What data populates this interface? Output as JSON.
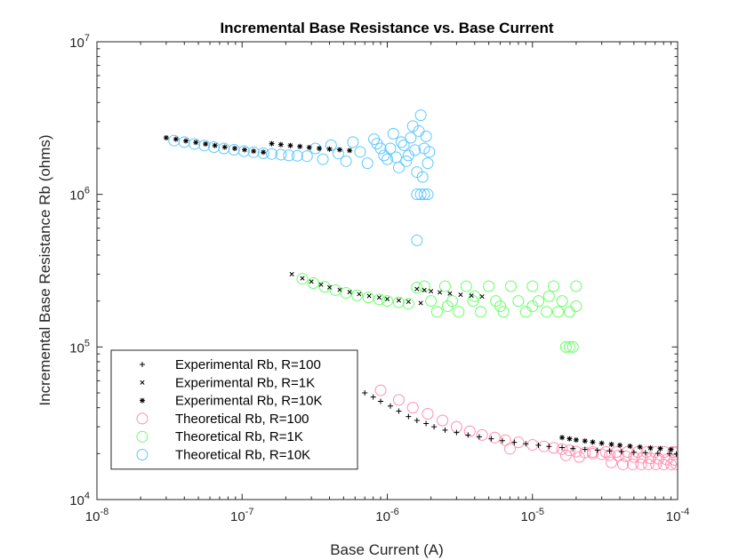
{
  "chart_data": {
    "type": "scatter",
    "title": "Incremental Base Resistance vs. Base Current",
    "xlabel": "Base Current (A)",
    "ylabel": "Incremental Base Resistance Rb (ohms)",
    "xscale": "log",
    "yscale": "log",
    "xlim": [
      1e-08,
      0.0001
    ],
    "ylim": [
      10000.0,
      10000000.0
    ],
    "x_ticks": [
      {
        "value": 1e-08,
        "base": "10",
        "exp": "-8"
      },
      {
        "value": 1e-07,
        "base": "10",
        "exp": "-7"
      },
      {
        "value": 1e-06,
        "base": "10",
        "exp": "-6"
      },
      {
        "value": 1e-05,
        "base": "10",
        "exp": "-5"
      },
      {
        "value": 0.0001,
        "base": "10",
        "exp": "-4"
      }
    ],
    "y_ticks": [
      {
        "value": 10000.0,
        "base": "10",
        "exp": "4"
      },
      {
        "value": 100000.0,
        "base": "10",
        "exp": "5"
      },
      {
        "value": 1000000.0,
        "base": "10",
        "exp": "6"
      },
      {
        "value": 10000000.0,
        "base": "10",
        "exp": "7"
      }
    ],
    "grid": false,
    "legend_position": "bottom-left",
    "series": [
      {
        "name": "Experimental Rb, R=100",
        "marker": "plus",
        "color": "#000000",
        "points": [
          [
            7e-07,
            50000
          ],
          [
            8e-07,
            47000
          ],
          [
            9e-07,
            44000
          ],
          [
            1.05e-06,
            41000
          ],
          [
            1.2e-06,
            38000
          ],
          [
            1.4e-06,
            35000
          ],
          [
            1.6e-06,
            33000
          ],
          [
            1.85e-06,
            31500
          ],
          [
            2.1e-06,
            30000
          ],
          [
            2.5e-06,
            28500
          ],
          [
            3e-06,
            27500
          ],
          [
            3.6e-06,
            26500
          ],
          [
            4.3e-06,
            25800
          ],
          [
            5.2e-06,
            25000
          ],
          [
            6.2e-06,
            24300
          ],
          [
            7.5e-06,
            23700
          ],
          [
            9e-06,
            23200
          ],
          [
            1.1e-05,
            22700
          ],
          [
            1.3e-05,
            22300
          ],
          [
            1.6e-05,
            21900
          ],
          [
            1.9e-05,
            21600
          ],
          [
            2.3e-05,
            21300
          ],
          [
            2.8e-05,
            21000
          ],
          [
            3.4e-05,
            20800
          ],
          [
            4.1e-05,
            20600
          ],
          [
            5e-05,
            20400
          ],
          [
            6e-05,
            20300
          ],
          [
            7.3e-05,
            20100
          ],
          [
            8.8e-05,
            20000
          ],
          [
            9.8e-05,
            19900
          ]
        ]
      },
      {
        "name": "Experimental Rb, R=1K",
        "marker": "x",
        "color": "#000000",
        "points": [
          [
            2.2e-07,
            300000
          ],
          [
            2.6e-07,
            282000
          ],
          [
            3e-07,
            268000
          ],
          [
            3.5e-07,
            256000
          ],
          [
            4e-07,
            246000
          ],
          [
            4.7e-07,
            237000
          ],
          [
            5.5e-07,
            229000
          ],
          [
            6.4e-07,
            222000
          ],
          [
            7.5e-07,
            216000
          ],
          [
            8.8e-07,
            211000
          ],
          [
            1e-06,
            206000
          ],
          [
            1.2e-06,
            202000
          ],
          [
            1.4e-06,
            198000
          ],
          [
            1.7e-06,
            194000
          ],
          [
            1.6e-06,
            240000
          ],
          [
            1.8e-06,
            236000
          ],
          [
            2e-06,
            232000
          ],
          [
            2.3e-06,
            228000
          ],
          [
            2.7e-06,
            224000
          ],
          [
            3.2e-06,
            220000
          ],
          [
            3.8e-06,
            217000
          ],
          [
            4.5e-06,
            214000
          ]
        ]
      },
      {
        "name": "Experimental Rb, R=10K",
        "marker": "star",
        "color": "#000000",
        "points": [
          [
            3e-08,
            2350000
          ],
          [
            3.5e-08,
            2300000
          ],
          [
            4.1e-08,
            2240000
          ],
          [
            4.8e-08,
            2190000
          ],
          [
            5.6e-08,
            2140000
          ],
          [
            6.5e-08,
            2090000
          ],
          [
            7.6e-08,
            2040000
          ],
          [
            8.9e-08,
            2000000
          ],
          [
            1.04e-07,
            1960000
          ],
          [
            1.2e-07,
            1920000
          ],
          [
            1.4e-07,
            1890000
          ],
          [
            1.6e-07,
            2150000
          ],
          [
            1.85e-07,
            2120000
          ],
          [
            2.15e-07,
            2090000
          ],
          [
            2.5e-07,
            2060000
          ],
          [
            2.9e-07,
            2030000
          ],
          [
            3.4e-07,
            2000000
          ],
          [
            4e-07,
            1980000
          ],
          [
            4.7e-07,
            1960000
          ],
          [
            5.5e-07,
            1940000
          ],
          [
            1.6e-05,
            25500
          ],
          [
            1.8e-05,
            25000
          ],
          [
            2e-05,
            24600
          ],
          [
            2.3e-05,
            24200
          ],
          [
            2.6e-05,
            23800
          ],
          [
            3e-05,
            23400
          ],
          [
            3.5e-05,
            23000
          ],
          [
            4e-05,
            22700
          ],
          [
            4.7e-05,
            22400
          ],
          [
            5.5e-05,
            22100
          ],
          [
            6.5e-05,
            21800
          ],
          [
            7.6e-05,
            21600
          ],
          [
            9e-05,
            21300
          ]
        ]
      },
      {
        "name": "Theoretical Rb, R=100",
        "marker": "circle",
        "color": "#ff8fb0",
        "points": [
          [
            9e-07,
            52000
          ],
          [
            1.2e-06,
            45000
          ],
          [
            1.5e-06,
            40000
          ],
          [
            1.9e-06,
            36500
          ],
          [
            2.4e-06,
            33000
          ],
          [
            3e-06,
            30000
          ],
          [
            3.7e-06,
            28000
          ],
          [
            4.5e-06,
            26500
          ],
          [
            5.5e-06,
            25500
          ],
          [
            6.5e-06,
            24500
          ],
          [
            8e-06,
            23700
          ],
          [
            1e-05,
            22800
          ],
          [
            1.2e-05,
            22300
          ],
          [
            1.4e-05,
            21800
          ],
          [
            1.6e-05,
            21400
          ],
          [
            1.8e-05,
            21000
          ],
          [
            2e-05,
            20600
          ],
          [
            2.3e-05,
            20300
          ],
          [
            2.6e-05,
            20000
          ],
          [
            3e-05,
            19800
          ],
          [
            3.4e-05,
            19600
          ],
          [
            3.9e-05,
            19400
          ],
          [
            4.4e-05,
            19200
          ],
          [
            5e-05,
            19000
          ],
          [
            5.7e-05,
            18800
          ],
          [
            6.5e-05,
            18600
          ],
          [
            7.4e-05,
            18500
          ],
          [
            8.4e-05,
            18300
          ],
          [
            9.5e-05,
            18200
          ],
          [
            7e-06,
            21500
          ],
          [
            1.7e-05,
            19500
          ],
          [
            2.1e-05,
            19000
          ],
          [
            3.5e-05,
            17500
          ],
          [
            4.2e-05,
            17000
          ],
          [
            4.9e-05,
            17000
          ],
          [
            5.6e-05,
            17000
          ],
          [
            6.3e-05,
            17000
          ],
          [
            7.1e-05,
            17000
          ],
          [
            8e-05,
            17000
          ],
          [
            9e-05,
            17000
          ],
          [
            9.8e-05,
            17000
          ],
          [
            2.6e-05,
            20500
          ],
          [
            3.2e-05,
            20500
          ],
          [
            3.8e-05,
            20500
          ],
          [
            4.5e-05,
            20500
          ],
          [
            5.3e-05,
            20500
          ],
          [
            6.1e-05,
            20500
          ],
          [
            7e-05,
            20500
          ],
          [
            8.1e-05,
            20500
          ],
          [
            9.3e-05,
            20500
          ],
          [
            9.9e-05,
            20500
          ]
        ]
      },
      {
        "name": "Theoretical Rb, R=1K",
        "marker": "circle",
        "color": "#66ff66",
        "points": [
          [
            2.6e-07,
            280000
          ],
          [
            3.1e-07,
            262000
          ],
          [
            3.7e-07,
            248000
          ],
          [
            4.4e-07,
            236000
          ],
          [
            5.2e-07,
            226000
          ],
          [
            6.2e-07,
            218000
          ],
          [
            7.4e-07,
            211000
          ],
          [
            8.8e-07,
            205000
          ],
          [
            1e-06,
            200000
          ],
          [
            1.2e-06,
            196000
          ],
          [
            1.4e-06,
            192000
          ],
          [
            1.6e-06,
            245000
          ],
          [
            1.8e-06,
            250000
          ],
          [
            2e-06,
            200000
          ],
          [
            2.2e-06,
            170000
          ],
          [
            2.5e-06,
            250000
          ],
          [
            2.8e-06,
            200000
          ],
          [
            3.1e-06,
            170000
          ],
          [
            3.5e-06,
            250000
          ],
          [
            3.9e-06,
            200000
          ],
          [
            4.4e-06,
            170000
          ],
          [
            5e-06,
            250000
          ],
          [
            5.6e-06,
            200000
          ],
          [
            6.3e-06,
            170000
          ],
          [
            7.1e-06,
            250000
          ],
          [
            8e-06,
            200000
          ],
          [
            9e-06,
            170000
          ],
          [
            1e-05,
            250000
          ],
          [
            1.1e-05,
            200000
          ],
          [
            1.25e-05,
            170000
          ],
          [
            1.4e-05,
            250000
          ],
          [
            1.6e-05,
            200000
          ],
          [
            1.8e-05,
            170000
          ],
          [
            2e-05,
            250000
          ],
          [
            1.7e-05,
            100000
          ],
          [
            1.8e-05,
            100000
          ],
          [
            1.9e-05,
            100000
          ],
          [
            1e-05,
            185000
          ],
          [
            1.3e-05,
            215000
          ],
          [
            6e-06,
            185000
          ],
          [
            4e-06,
            215000
          ],
          [
            2.6e-06,
            185000
          ],
          [
            1.5e-05,
            170000
          ],
          [
            2e-05,
            185000
          ]
        ]
      },
      {
        "name": "Theoretical Rb, R=10K",
        "marker": "circle",
        "color": "#5bc8ff",
        "points": [
          [
            3.4e-08,
            2250000
          ],
          [
            4e-08,
            2200000
          ],
          [
            4.7e-08,
            2140000
          ],
          [
            5.5e-08,
            2090000
          ],
          [
            6.4e-08,
            2040000
          ],
          [
            7.5e-08,
            2000000
          ],
          [
            8.8e-08,
            1960000
          ],
          [
            1.03e-07,
            1920000
          ],
          [
            1.2e-07,
            1890000
          ],
          [
            1.4e-07,
            1860000
          ],
          [
            1.6e-07,
            1840000
          ],
          [
            1.85e-07,
            1820000
          ],
          [
            2.1e-07,
            1800000
          ],
          [
            2.4e-07,
            1790000
          ],
          [
            2.8e-07,
            1780000
          ],
          [
            3.2e-07,
            2000000
          ],
          [
            3.6e-07,
            1700000
          ],
          [
            4.1e-07,
            2100000
          ],
          [
            4.6e-07,
            1850000
          ],
          [
            5.2e-07,
            1650000
          ],
          [
            5.8e-07,
            2200000
          ],
          [
            6.5e-07,
            1900000
          ],
          [
            7.3e-07,
            1600000
          ],
          [
            8.1e-07,
            2300000
          ],
          [
            9e-07,
            2000000
          ],
          [
            1e-06,
            1700000
          ],
          [
            1.1e-06,
            2500000
          ],
          [
            1.2e-06,
            1500000
          ],
          [
            1.3e-06,
            2100000
          ],
          [
            1.4e-06,
            1800000
          ],
          [
            1.5e-06,
            2800000
          ],
          [
            1.6e-06,
            1400000
          ],
          [
            1.7e-06,
            3300000
          ],
          [
            1.8e-06,
            2000000
          ],
          [
            1.9e-06,
            1600000
          ],
          [
            1.65e-06,
            2600000
          ],
          [
            1.75e-06,
            1300000
          ],
          [
            1.85e-06,
            2400000
          ],
          [
            1.95e-06,
            1900000
          ],
          [
            1.6e-06,
            1000000
          ],
          [
            1.7e-06,
            1000000
          ],
          [
            1.8e-06,
            1000000
          ],
          [
            1.9e-06,
            1000000
          ],
          [
            1.6e-06,
            500000
          ],
          [
            1.25e-06,
            2200000
          ],
          [
            1.35e-06,
            1650000
          ],
          [
            1.45e-06,
            2350000
          ],
          [
            1.55e-06,
            1950000
          ],
          [
            1.05e-06,
            2000000
          ],
          [
            9.5e-07,
            1800000
          ],
          [
            8.5e-07,
            2150000
          ],
          [
            1.15e-06,
            1750000
          ]
        ]
      }
    ]
  }
}
